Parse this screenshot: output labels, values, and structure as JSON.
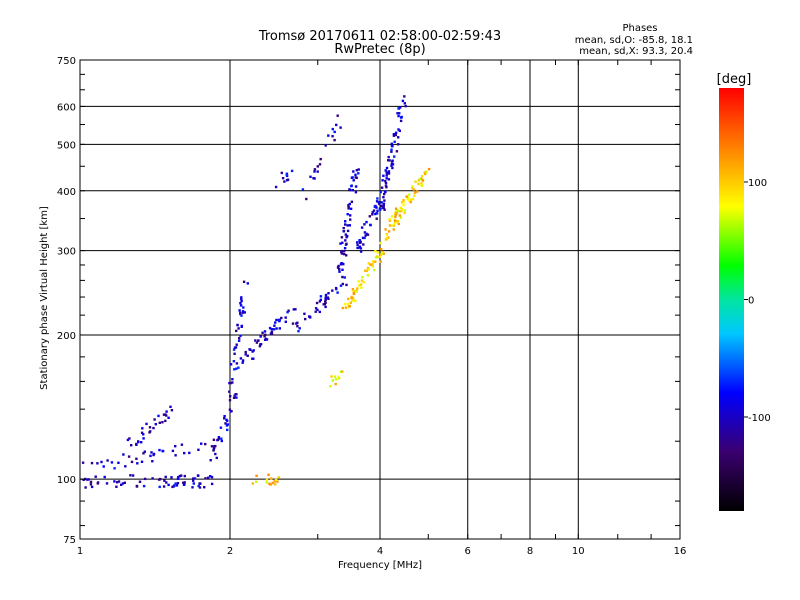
{
  "chart_data": {
    "type": "scatter",
    "title": "Tromsø 20170611 02:58:00-02:59:43",
    "subtitle": "RwPretec (8p)",
    "xlabel": "Frequency [MHz]",
    "ylabel": "Stationary phase Virtual Height [km]",
    "x_scale": "log",
    "y_scale": "log",
    "xlim": [
      1,
      16
    ],
    "ylim": [
      75,
      750
    ],
    "x_ticks": [
      1,
      2,
      4,
      6,
      8,
      10,
      16
    ],
    "x_tick_labels": [
      "1",
      "2",
      "4",
      "6",
      "8",
      "10",
      "16"
    ],
    "y_ticks": [
      75,
      100,
      200,
      300,
      400,
      500,
      600,
      750
    ],
    "y_tick_labels": [
      "75",
      "100",
      "200",
      "300",
      "400",
      "500",
      "600",
      "750"
    ],
    "grid": true,
    "legend": {
      "title": "Phases",
      "lines": [
        "mean, sd,O: -85.8, 18.1",
        "mean, sd,X:  93.3, 20.4"
      ],
      "position": "top-right"
    },
    "colorbar": {
      "label": "[deg]",
      "range": [
        -180,
        180
      ],
      "ticks": [
        100,
        0,
        -100
      ],
      "tick_labels": [
        "100",
        "0",
        "-100"
      ]
    },
    "series": [
      {
        "name": "O-mode (blue, ~ -100 deg)",
        "phase": -100,
        "segments": [
          {
            "f1": 1.0,
            "f2": 1.85,
            "h1": 99,
            "h2": 99,
            "n": 70
          },
          {
            "f1": 1.02,
            "f2": 1.9,
            "h1": 106,
            "h2": 118,
            "n": 40
          },
          {
            "f1": 1.25,
            "f2": 1.55,
            "h1": 118,
            "h2": 140,
            "n": 30
          },
          {
            "f1": 1.85,
            "f2": 2.05,
            "h1": 110,
            "h2": 150,
            "n": 30
          },
          {
            "f1": 2.0,
            "f2": 2.15,
            "h1": 150,
            "h2": 260,
            "n": 40
          },
          {
            "f1": 2.1,
            "f2": 2.7,
            "h1": 175,
            "h2": 230,
            "n": 50
          },
          {
            "f1": 2.7,
            "f2": 3.4,
            "h1": 205,
            "h2": 260,
            "n": 40
          },
          {
            "f1": 3.3,
            "f2": 3.6,
            "h1": 260,
            "h2": 460,
            "n": 60
          },
          {
            "f1": 3.6,
            "f2": 4.0,
            "h1": 300,
            "h2": 380,
            "n": 40
          },
          {
            "f1": 4.0,
            "f2": 4.5,
            "h1": 360,
            "h2": 640,
            "n": 70
          },
          {
            "f1": 2.8,
            "f2": 3.3,
            "h1": 380,
            "h2": 560,
            "n": 20
          },
          {
            "f1": 2.45,
            "f2": 2.65,
            "h1": 410,
            "h2": 435,
            "n": 10
          }
        ]
      },
      {
        "name": "X-mode (yellow/orange, ~ +90 deg)",
        "phase": 95,
        "segments": [
          {
            "f1": 2.2,
            "f2": 2.5,
            "h1": 100,
            "h2": 100,
            "n": 15
          },
          {
            "f1": 3.2,
            "f2": 3.35,
            "h1": 160,
            "h2": 172,
            "n": 10
          },
          {
            "f1": 3.4,
            "f2": 4.0,
            "h1": 225,
            "h2": 300,
            "n": 50
          },
          {
            "f1": 4.0,
            "f2": 4.3,
            "h1": 290,
            "h2": 360,
            "n": 30
          },
          {
            "f1": 4.3,
            "f2": 5.0,
            "h1": 350,
            "h2": 440,
            "n": 50
          }
        ]
      }
    ]
  }
}
